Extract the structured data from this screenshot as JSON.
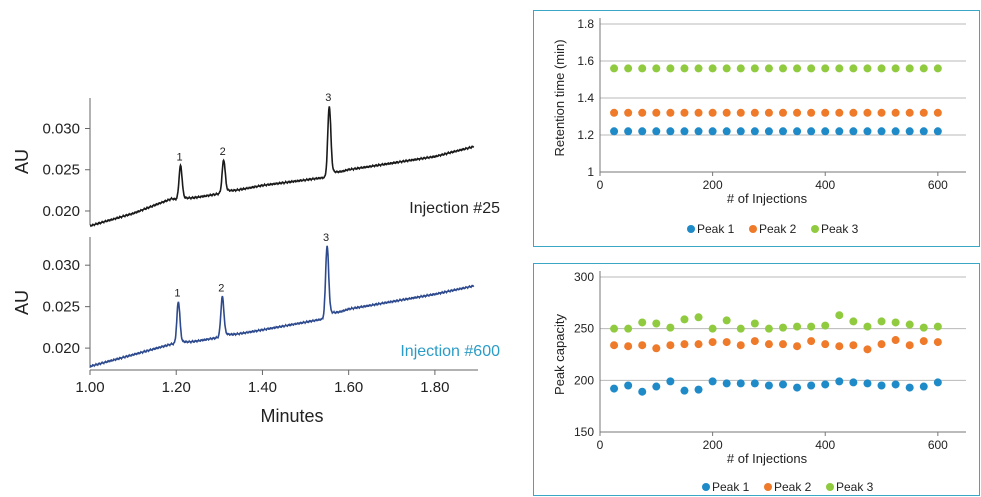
{
  "colors": {
    "trace_top": "#1a1a1a",
    "trace_bottom": "#2e4a8e",
    "label_bottom": "#2b9cc6",
    "peak1": "#1f8ac8",
    "peak2": "#ee7a2a",
    "peak3": "#8fca3f",
    "panel_border": "#3ba7c6",
    "grid": "#b8b8b8"
  },
  "chromatograms": {
    "x_axis_label": "Minutes",
    "y_axis_label": "AU",
    "x_ticks": [
      "1.00",
      "1.20",
      "1.40",
      "1.60",
      "1.80"
    ],
    "y_ticks": [
      "0.020",
      "0.025",
      "0.030"
    ],
    "peak_labels": [
      "1",
      "2",
      "3"
    ],
    "top_label": "Injection #25",
    "bottom_label": "Injection #600"
  },
  "chart_data": [
    {
      "type": "line",
      "label": "Injection #25",
      "xlim": [
        1.0,
        1.9
      ],
      "ylim": [
        0.0183,
        0.0337
      ],
      "xlabel": "Minutes",
      "ylabel": "AU",
      "baseline": [
        [
          1.0,
          0.0182
        ],
        [
          1.1,
          0.0197
        ],
        [
          1.19,
          0.0215
        ],
        [
          1.21,
          0.0213
        ],
        [
          1.3,
          0.0221
        ],
        [
          1.4,
          0.0231
        ],
        [
          1.55,
          0.0241
        ],
        [
          1.6,
          0.025
        ],
        [
          1.7,
          0.0258
        ],
        [
          1.8,
          0.0266
        ],
        [
          1.89,
          0.0278
        ]
      ],
      "peaks": [
        {
          "label": "1",
          "x": 1.21,
          "y": 0.0255
        },
        {
          "label": "2",
          "x": 1.31,
          "y": 0.0262
        },
        {
          "label": "3",
          "x": 1.555,
          "y": 0.0327
        }
      ]
    },
    {
      "type": "line",
      "label": "Injection #600",
      "xlim": [
        1.0,
        1.9
      ],
      "ylim": [
        0.0176,
        0.0334
      ],
      "xlabel": "Minutes",
      "ylabel": "AU",
      "baseline": [
        [
          1.0,
          0.0178
        ],
        [
          1.1,
          0.0192
        ],
        [
          1.19,
          0.0205
        ],
        [
          1.21,
          0.0205
        ],
        [
          1.3,
          0.0213
        ],
        [
          1.4,
          0.0222
        ],
        [
          1.54,
          0.0235
        ],
        [
          1.6,
          0.0247
        ],
        [
          1.7,
          0.0256
        ],
        [
          1.8,
          0.0265
        ],
        [
          1.89,
          0.0275
        ]
      ],
      "peaks": [
        {
          "label": "1",
          "x": 1.205,
          "y": 0.0256
        },
        {
          "label": "2",
          "x": 1.307,
          "y": 0.0262
        },
        {
          "label": "3",
          "x": 1.55,
          "y": 0.0323
        }
      ]
    },
    {
      "type": "scatter",
      "xlabel": "# of Injections",
      "ylabel": "Retention time (min)",
      "xlim": [
        0,
        650
      ],
      "ylim": [
        1,
        1.8
      ],
      "x_ticks": [
        "0",
        "200",
        "400",
        "600"
      ],
      "y_ticks": [
        "1",
        "1.2",
        "1.4",
        "1.6",
        "1.8"
      ],
      "legend": "bottom",
      "grid": true,
      "x": [
        25,
        50,
        75,
        100,
        125,
        150,
        175,
        200,
        225,
        250,
        275,
        300,
        325,
        350,
        375,
        400,
        425,
        450,
        475,
        500,
        525,
        550,
        575,
        600
      ],
      "series": [
        {
          "name": "Peak 1",
          "values": [
            1.22,
            1.22,
            1.22,
            1.22,
            1.22,
            1.22,
            1.22,
            1.22,
            1.22,
            1.22,
            1.22,
            1.22,
            1.22,
            1.22,
            1.22,
            1.22,
            1.22,
            1.22,
            1.22,
            1.22,
            1.22,
            1.22,
            1.22,
            1.22
          ]
        },
        {
          "name": "Peak 2",
          "values": [
            1.32,
            1.32,
            1.32,
            1.32,
            1.32,
            1.32,
            1.32,
            1.32,
            1.32,
            1.32,
            1.32,
            1.32,
            1.32,
            1.32,
            1.32,
            1.32,
            1.32,
            1.32,
            1.32,
            1.32,
            1.32,
            1.32,
            1.32,
            1.32
          ]
        },
        {
          "name": "Peak 3",
          "values": [
            1.56,
            1.56,
            1.56,
            1.56,
            1.56,
            1.56,
            1.56,
            1.56,
            1.56,
            1.56,
            1.56,
            1.56,
            1.56,
            1.56,
            1.56,
            1.56,
            1.56,
            1.56,
            1.56,
            1.56,
            1.56,
            1.56,
            1.56,
            1.56
          ]
        }
      ]
    },
    {
      "type": "scatter",
      "xlabel": "# of Injections",
      "ylabel": "Peak capacity",
      "xlim": [
        0,
        650
      ],
      "ylim": [
        150,
        300
      ],
      "x_ticks": [
        "0",
        "200",
        "400",
        "600"
      ],
      "y_ticks": [
        "150",
        "200",
        "250",
        "300"
      ],
      "legend": "bottom",
      "grid": true,
      "x": [
        25,
        50,
        75,
        100,
        125,
        150,
        175,
        200,
        225,
        250,
        275,
        300,
        325,
        350,
        375,
        400,
        425,
        450,
        475,
        500,
        525,
        550,
        575,
        600
      ],
      "series": [
        {
          "name": "Peak 1",
          "values": [
            192,
            195,
            189,
            194,
            199,
            190,
            191,
            199,
            197,
            197,
            197,
            195,
            196,
            193,
            195,
            196,
            199,
            198,
            197,
            195,
            196,
            193,
            194,
            198
          ]
        },
        {
          "name": "Peak 2",
          "values": [
            234,
            233,
            234,
            231,
            234,
            235,
            235,
            237,
            237,
            234,
            238,
            235,
            235,
            233,
            238,
            235,
            233,
            234,
            230,
            235,
            239,
            234,
            238,
            237
          ]
        },
        {
          "name": "Peak 3",
          "values": [
            250,
            250,
            256,
            255,
            251,
            259,
            261,
            250,
            258,
            250,
            255,
            250,
            251,
            252,
            252,
            253,
            263,
            257,
            252,
            257,
            256,
            254,
            251,
            252
          ]
        }
      ]
    }
  ]
}
